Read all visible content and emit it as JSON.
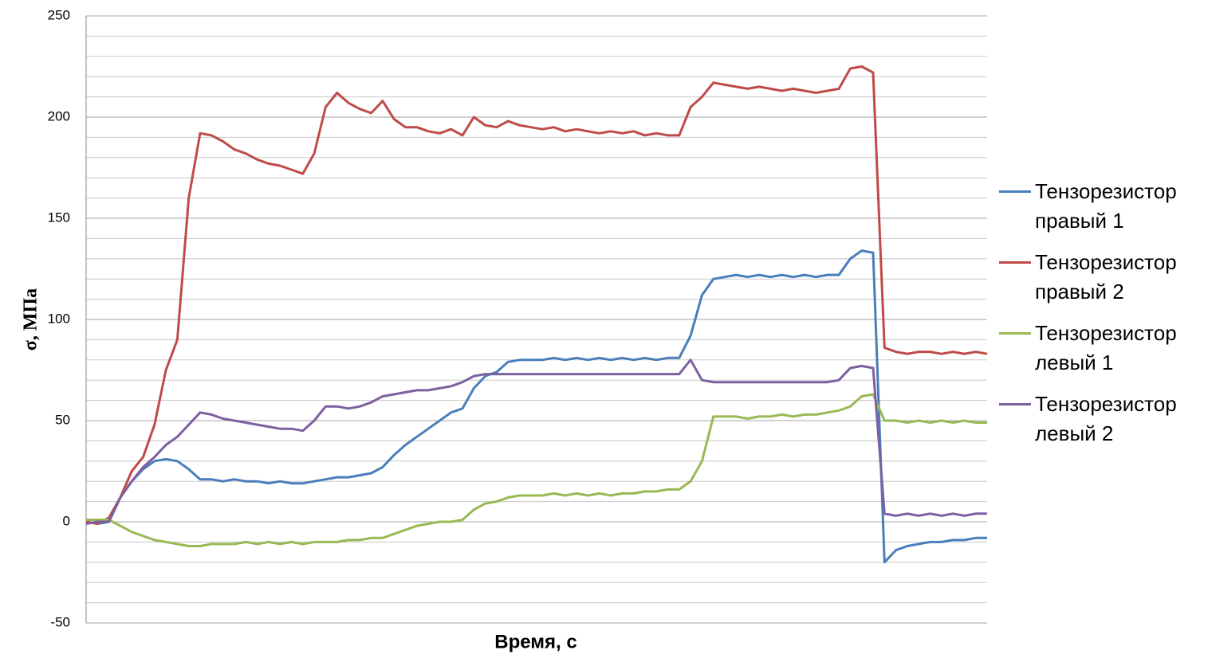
{
  "chart_data": {
    "type": "line",
    "x_label": "Время, с",
    "y_label": "σ, МПа",
    "categories": [
      null,
      null,
      null,
      null,
      null,
      null,
      null,
      null,
      null,
      null,
      null,
      null,
      null,
      null,
      null,
      null,
      null,
      null,
      null,
      null,
      null,
      null,
      null,
      null,
      null,
      null,
      null,
      null,
      null,
      null,
      null,
      null,
      null,
      null,
      null,
      null,
      null,
      null,
      null,
      null,
      null,
      null,
      null,
      null,
      null,
      null,
      null,
      null,
      null,
      null,
      null,
      null,
      null,
      null,
      null,
      null,
      null,
      null,
      null,
      null,
      null,
      null,
      null,
      null,
      null,
      null,
      null,
      null,
      null,
      null,
      null,
      null,
      null,
      null,
      null,
      null,
      null,
      null,
      null,
      null
    ],
    "ylim": [
      -50,
      250
    ],
    "yticks": [
      -50,
      0,
      50,
      100,
      150,
      200,
      250
    ],
    "minor_yticks": [
      -40,
      -30,
      -20,
      -10,
      10,
      20,
      30,
      40,
      60,
      70,
      80,
      90,
      110,
      120,
      130,
      140,
      160,
      170,
      180,
      190,
      210,
      220,
      230,
      240
    ],
    "grid": true,
    "legend": "right",
    "series": [
      {
        "name": "Тензорезистор правый 1",
        "color": "#4a7ebb",
        "values": [
          0,
          -1,
          0,
          12,
          20,
          26,
          30,
          31,
          30,
          26,
          21,
          21,
          20,
          21,
          20,
          20,
          19,
          20,
          19,
          19,
          20,
          21,
          22,
          22,
          23,
          24,
          27,
          33,
          38,
          42,
          46,
          50,
          54,
          56,
          66,
          72,
          74,
          79,
          80,
          80,
          80,
          81,
          80,
          81,
          80,
          81,
          80,
          81,
          80,
          81,
          80,
          81,
          81,
          92,
          112,
          120,
          121,
          122,
          121,
          122,
          121,
          122,
          121,
          122,
          121,
          122,
          122,
          130,
          134,
          133,
          -20,
          -14,
          -12,
          -11,
          -10,
          -10,
          -9,
          -9,
          -8,
          -8
        ]
      },
      {
        "name": "Тензорезистор правый 2",
        "color": "#be4b48",
        "values": [
          0,
          -1,
          2,
          12,
          25,
          32,
          48,
          75,
          90,
          160,
          192,
          191,
          188,
          184,
          182,
          179,
          177,
          176,
          174,
          172,
          182,
          205,
          212,
          207,
          204,
          202,
          208,
          199,
          195,
          195,
          193,
          192,
          194,
          191,
          200,
          196,
          195,
          198,
          196,
          195,
          194,
          195,
          193,
          194,
          193,
          192,
          193,
          192,
          193,
          191,
          192,
          191,
          191,
          205,
          210,
          217,
          216,
          215,
          214,
          215,
          214,
          213,
          214,
          213,
          212,
          213,
          214,
          224,
          225,
          222,
          86,
          84,
          83,
          84,
          84,
          83,
          84,
          83,
          84,
          83
        ]
      },
      {
        "name": "Тензорезистор левый 1",
        "color": "#98b954",
        "values": [
          1,
          1,
          1,
          -2,
          -5,
          -7,
          -9,
          -10,
          -11,
          -12,
          -12,
          -11,
          -11,
          -11,
          -10,
          -11,
          -10,
          -11,
          -10,
          -11,
          -10,
          -10,
          -10,
          -9,
          -9,
          -8,
          -8,
          -6,
          -4,
          -2,
          -1,
          0,
          0,
          1,
          6,
          9,
          10,
          12,
          13,
          13,
          13,
          14,
          13,
          14,
          13,
          14,
          13,
          14,
          14,
          15,
          15,
          16,
          16,
          20,
          30,
          52,
          52,
          52,
          51,
          52,
          52,
          53,
          52,
          53,
          53,
          54,
          55,
          57,
          62,
          63,
          50,
          50,
          49,
          50,
          49,
          50,
          49,
          50,
          49,
          49
        ]
      },
      {
        "name": "Тензорезистор левый 2",
        "color": "#7d60a0",
        "values": [
          -1,
          0,
          0,
          12,
          20,
          27,
          32,
          38,
          42,
          48,
          54,
          53,
          51,
          50,
          49,
          48,
          47,
          46,
          46,
          45,
          50,
          57,
          57,
          56,
          57,
          59,
          62,
          63,
          64,
          65,
          65,
          66,
          67,
          69,
          72,
          73,
          73,
          73,
          73,
          73,
          73,
          73,
          73,
          73,
          73,
          73,
          73,
          73,
          73,
          73,
          73,
          73,
          73,
          80,
          70,
          69,
          69,
          69,
          69,
          69,
          69,
          69,
          69,
          69,
          69,
          69,
          70,
          76,
          77,
          76,
          4,
          3,
          4,
          3,
          4,
          3,
          4,
          3,
          4,
          4
        ]
      }
    ]
  }
}
